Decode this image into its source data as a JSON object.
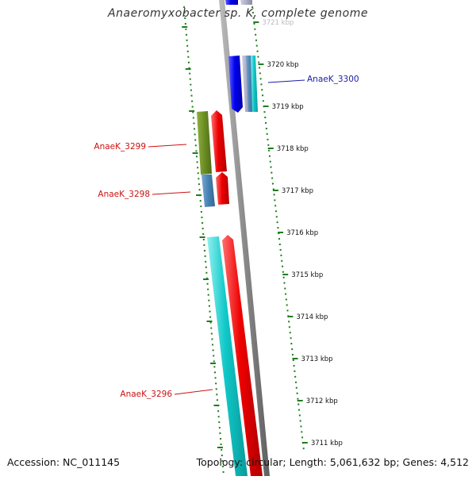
{
  "title": "Anaeromyxobacter sp. K, complete genome",
  "accession": "Accession: NC_011145",
  "topology": "Topology: circular; Length: 5,061,632 bp; Genes: 4,512",
  "ruler": {
    "tick_color": "#1e7d1e",
    "labels": [
      "3721 kbp",
      "3720 kbp",
      "3719 kbp",
      "3718 kbp",
      "3717 kbp",
      "3716 kbp",
      "3715 kbp",
      "3714 kbp",
      "3713 kbp",
      "3712 kbp",
      "3711 kbp"
    ]
  },
  "genes": [
    {
      "label": "AnaeK_3300",
      "color": "#1c1ca8",
      "side": "right"
    },
    {
      "label": "AnaeK_3299",
      "color": "#cc1111",
      "side": "left"
    },
    {
      "label": "AnaeK_3298",
      "color": "#cc1111",
      "side": "left"
    },
    {
      "label": "AnaeK_3296",
      "color": "#cc1111",
      "side": "left"
    }
  ],
  "colors": {
    "backbone": "#888888",
    "cds_forward": "#ee0000",
    "cds_reverse": "#0000ee",
    "olive_feature": "#6b8e23",
    "steel_feature": "#4682b4",
    "cyan_feature": "#00c8c8",
    "gray_feature": "#a0a0b8"
  }
}
